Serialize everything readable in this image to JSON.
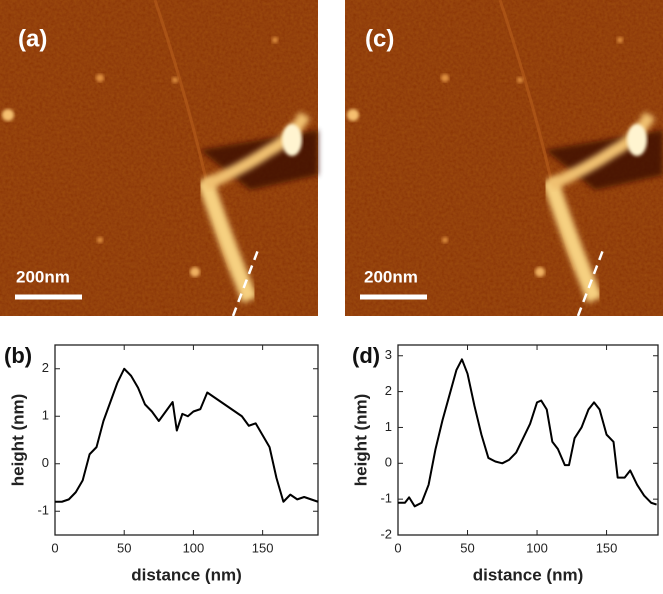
{
  "images": [
    {
      "label": "(a)",
      "scale_bar": "200nm"
    },
    {
      "label": "(c)",
      "scale_bar": "200nm"
    }
  ],
  "chart_data": [
    {
      "type": "line",
      "panel_label": "(b)",
      "xlabel": "distance (nm)",
      "ylabel": "height (nm)",
      "color": "#000000",
      "x": [
        0,
        5,
        10,
        15,
        20,
        25,
        30,
        35,
        40,
        45,
        50,
        55,
        60,
        65,
        70,
        75,
        80,
        85,
        88,
        92,
        96,
        100,
        105,
        110,
        115,
        120,
        125,
        130,
        135,
        140,
        145,
        150,
        155,
        160,
        165,
        170,
        175,
        180,
        185,
        190
      ],
      "values": [
        -0.8,
        -0.8,
        -0.75,
        -0.6,
        -0.35,
        0.2,
        0.35,
        0.9,
        1.3,
        1.7,
        2.0,
        1.85,
        1.6,
        1.25,
        1.1,
        0.9,
        1.1,
        1.3,
        0.7,
        1.05,
        1.0,
        1.1,
        1.15,
        1.5,
        1.4,
        1.3,
        1.2,
        1.1,
        1.0,
        0.8,
        0.85,
        0.6,
        0.35,
        -0.3,
        -0.8,
        -0.65,
        -0.75,
        -0.7,
        -0.75,
        -0.8
      ],
      "xlim": [
        0,
        190
      ],
      "ylim": [
        -1.5,
        2.5
      ],
      "xticks": [
        0,
        50,
        100,
        150
      ],
      "yticks": [
        -1,
        0,
        1,
        2
      ]
    },
    {
      "type": "line",
      "panel_label": "(d)",
      "xlabel": "distance (nm)",
      "ylabel": "height (nm)",
      "color": "#000000",
      "x": [
        0,
        5,
        8,
        12,
        17,
        22,
        27,
        32,
        37,
        42,
        46,
        50,
        55,
        60,
        65,
        70,
        75,
        80,
        85,
        90,
        95,
        100,
        103,
        107,
        111,
        115,
        120,
        123,
        127,
        132,
        137,
        141,
        145,
        150,
        155,
        158,
        163,
        167,
        172,
        177,
        182,
        186
      ],
      "values": [
        -1.1,
        -1.1,
        -0.95,
        -1.2,
        -1.1,
        -0.6,
        0.4,
        1.2,
        1.9,
        2.6,
        2.9,
        2.5,
        1.6,
        0.8,
        0.15,
        0.05,
        0.0,
        0.1,
        0.3,
        0.7,
        1.1,
        1.7,
        1.75,
        1.5,
        0.6,
        0.4,
        -0.05,
        -0.05,
        0.7,
        1.0,
        1.5,
        1.7,
        1.5,
        0.8,
        0.6,
        -0.4,
        -0.4,
        -0.2,
        -0.6,
        -0.9,
        -1.1,
        -1.15
      ],
      "xlim": [
        0,
        187
      ],
      "ylim": [
        -2,
        3.3
      ],
      "xticks": [
        0,
        50,
        100,
        150
      ],
      "yticks": [
        -2,
        -1,
        0,
        1,
        2,
        3
      ]
    }
  ]
}
